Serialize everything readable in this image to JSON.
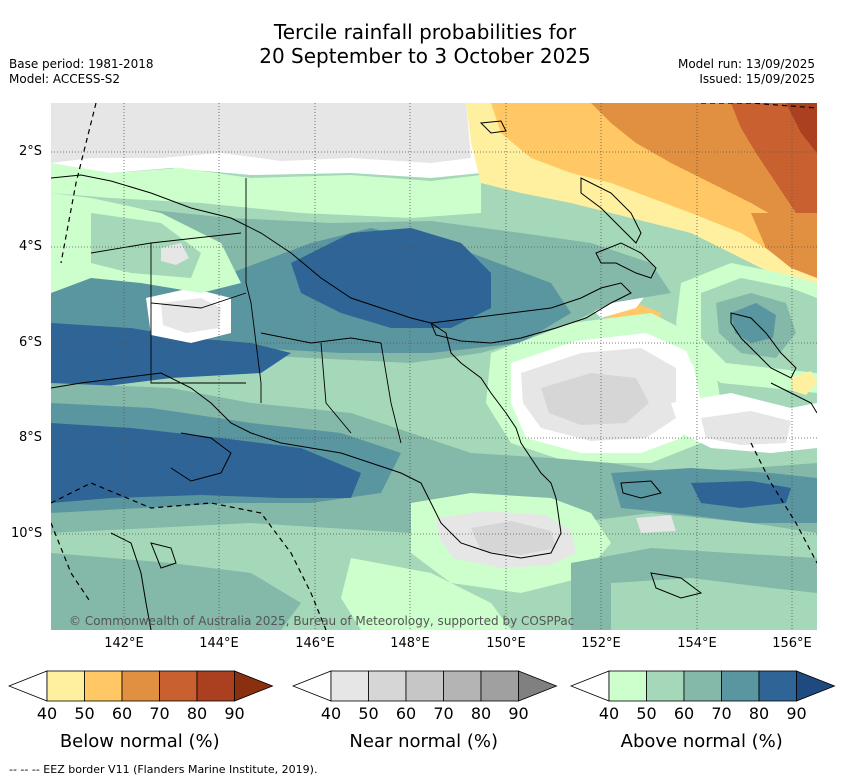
{
  "header": {
    "title_line1": "Tercile rainfall probabilities for",
    "title_line2": "20 September to 3 October 2025",
    "base_period": "Base period: 1981-2018",
    "model": "Model: ACCESS-S2",
    "model_run": "Model run: 13/09/2025",
    "issued": "Issued: 15/09/2025"
  },
  "map": {
    "lat_labels": [
      "2°S",
      "4°S",
      "6°S",
      "8°S",
      "10°S"
    ],
    "lon_labels": [
      "142°E",
      "144°E",
      "146°E",
      "148°E",
      "150°E",
      "152°E",
      "154°E",
      "156°E"
    ],
    "copyright": "© Commonwealth of Australia 2025, Bureau of Meteorology, supported by COSPPac"
  },
  "colorbars": [
    {
      "title": "Below normal (%)",
      "ticks": [
        "40",
        "50",
        "60",
        "70",
        "80",
        "90"
      ],
      "colors": [
        "#ffffff",
        "#fff0a0",
        "#ffc864",
        "#e09040",
        "#c86030",
        "#aa4020",
        "#8a3010"
      ]
    },
    {
      "title": "Near normal (%)",
      "ticks": [
        "40",
        "50",
        "60",
        "70",
        "80",
        "90"
      ],
      "colors": [
        "#ffffff",
        "#e6e6e6",
        "#d6d6d6",
        "#c6c6c6",
        "#b4b4b4",
        "#a0a0a0",
        "#808080"
      ]
    },
    {
      "title": "Above normal (%)",
      "ticks": [
        "40",
        "50",
        "60",
        "70",
        "80",
        "90"
      ],
      "colors": [
        "#ffffff",
        "#ccffcc",
        "#a4d8b8",
        "#84b8a8",
        "#5a96a0",
        "#2e6496",
        "#1e4a80"
      ]
    }
  ],
  "footer": "--  --  -- EEZ border V11 (Flanders Marine Institute, 2019)."
}
